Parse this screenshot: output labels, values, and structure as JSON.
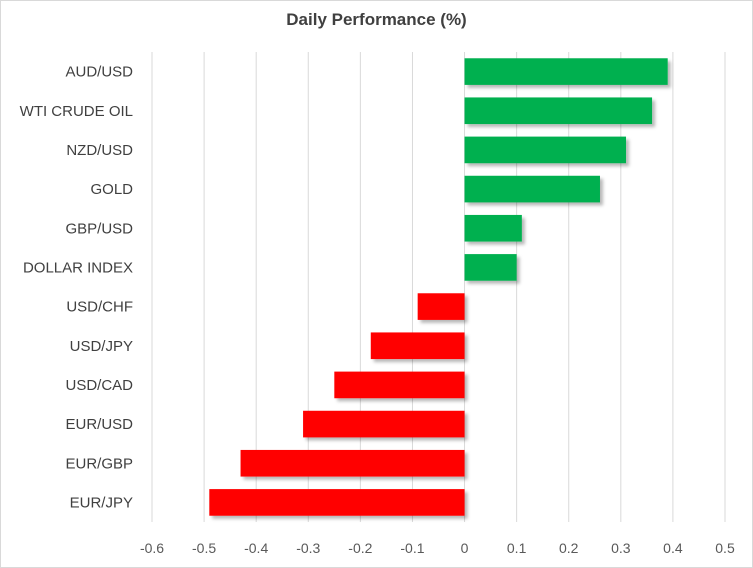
{
  "chart_data": {
    "type": "bar",
    "orientation": "horizontal",
    "title": "Daily Performance (%)",
    "xlabel": "",
    "ylabel": "",
    "categories": [
      "AUD/USD",
      "WTI CRUDE OIL",
      "NZD/USD",
      "GOLD",
      "GBP/USD",
      "DOLLAR INDEX",
      "USD/CHF",
      "USD/JPY",
      "USD/CAD",
      "EUR/USD",
      "EUR/GBP",
      "EUR/JPY"
    ],
    "values": [
      0.39,
      0.36,
      0.31,
      0.26,
      0.11,
      0.1,
      -0.09,
      -0.18,
      -0.25,
      -0.31,
      -0.43,
      -0.49
    ],
    "xlim": [
      -0.6,
      0.5
    ],
    "xticks": [
      -0.6,
      -0.5,
      -0.4,
      -0.3,
      -0.2,
      -0.1,
      0,
      0.1,
      0.2,
      0.3,
      0.4,
      0.5
    ],
    "xtick_labels": [
      "-0.6",
      "-0.5",
      "-0.4",
      "-0.3",
      "-0.2",
      "-0.1",
      "0",
      "0.1",
      "0.2",
      "0.3",
      "0.4",
      "0.5"
    ],
    "grid": true,
    "legend": "none",
    "colors": {
      "positive": "#00b050",
      "negative": "#ff0000",
      "grid": "#d9d9d9",
      "text": "#404040"
    }
  }
}
